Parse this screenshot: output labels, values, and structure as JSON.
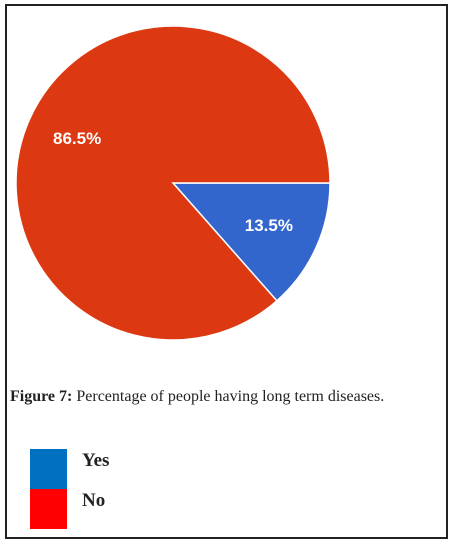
{
  "chart_data": {
    "type": "pie",
    "categories": [
      "Yes",
      "No"
    ],
    "values": [
      13.5,
      86.5
    ],
    "value_labels": [
      "13.5%",
      "86.5%"
    ],
    "colors": [
      "#3366cc",
      "#dc3912"
    ],
    "legend_colors": [
      "#0070c0",
      "#ff0000"
    ],
    "caption_label": "Figure 7:",
    "caption": "Percentage of people having long term diseases."
  }
}
